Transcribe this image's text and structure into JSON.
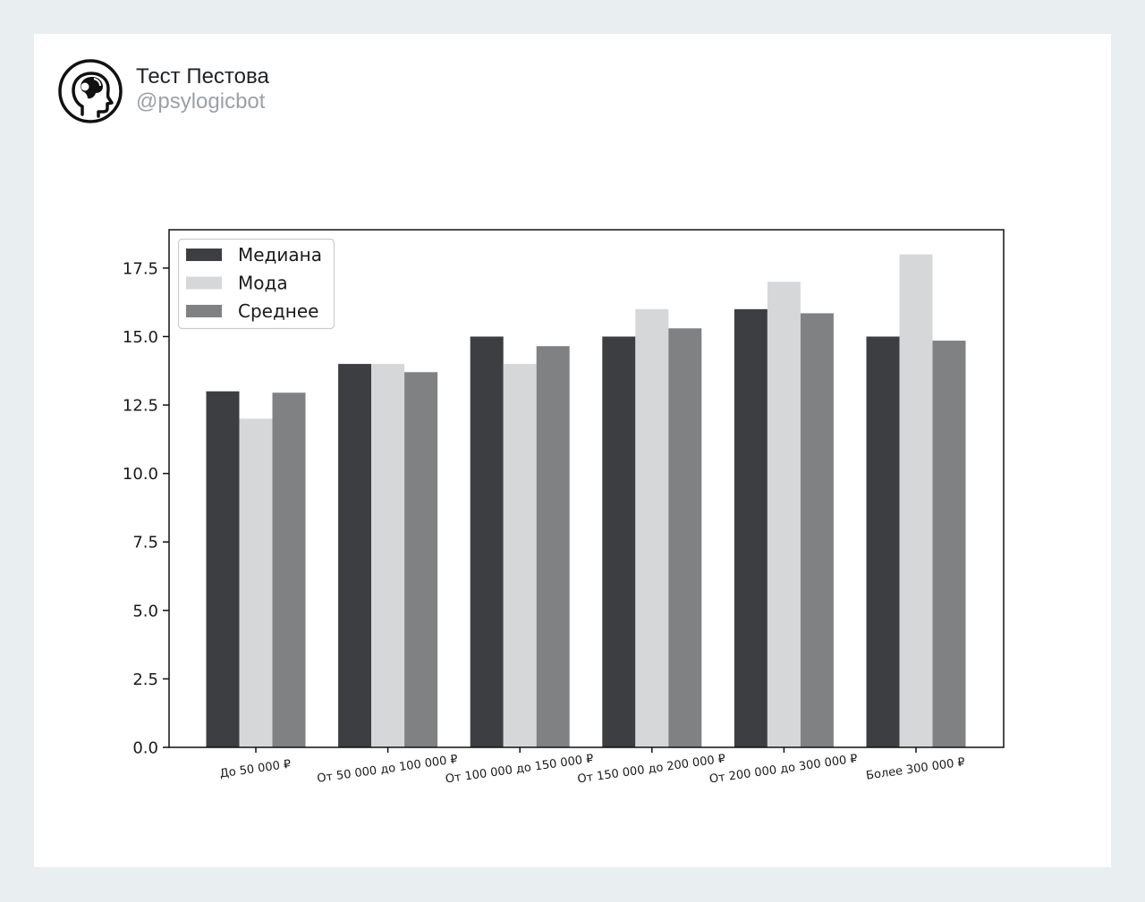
{
  "post": {
    "author_name": "Тест Пестова",
    "author_handle": "@psylogicbot",
    "avatar_icon": "head-profile-icon"
  },
  "chart_data": {
    "type": "bar",
    "categories": [
      "До 50 000 ₽",
      "От 50 000 до 100 000 ₽",
      "От 100 000 до 150 000 ₽",
      "От 150 000 до 200 000 ₽",
      "От 200 000 до 300 000 ₽",
      "Более 300 000 ₽"
    ],
    "series": [
      {
        "name": "Медиана",
        "color": "#3d3e41",
        "values": [
          13,
          14,
          15,
          15,
          16,
          15
        ]
      },
      {
        "name": "Мода",
        "color": "#d6d7d9",
        "values": [
          12,
          14,
          14,
          16,
          17,
          18
        ]
      },
      {
        "name": "Среднее",
        "color": "#808183",
        "values": [
          12.95,
          13.7,
          14.65,
          15.3,
          15.85,
          14.85
        ]
      }
    ],
    "yticks": [
      "0.0",
      "2.5",
      "5.0",
      "7.5",
      "10.0",
      "12.5",
      "15.0",
      "17.5"
    ],
    "ylim": [
      0,
      18.9
    ],
    "legend_position": "top-left",
    "grid": false
  }
}
